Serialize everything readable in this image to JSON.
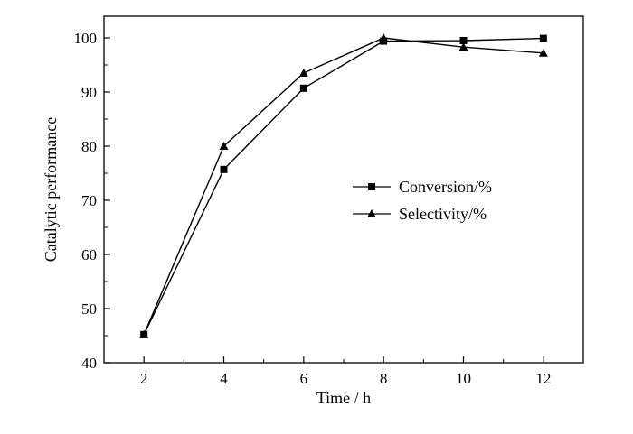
{
  "chart_data": {
    "type": "line",
    "xlabel": "Time / h",
    "ylabel": "Catalytic performance",
    "x": [
      2,
      4,
      6,
      8,
      10,
      12
    ],
    "xticks": [
      "2",
      "4",
      "6",
      "8",
      "10",
      "12"
    ],
    "yticks": [
      "40",
      "50",
      "60",
      "70",
      "80",
      "90",
      "100"
    ],
    "xlim": [
      1,
      13
    ],
    "ylim": [
      40,
      104
    ],
    "grid": false,
    "legend_position": "center-right",
    "series": [
      {
        "name": "Conversion/%",
        "marker": "square",
        "values": [
          45.2,
          75.7,
          90.7,
          99.4,
          99.5,
          99.9
        ],
        "color": "#000000"
      },
      {
        "name": "Selectivity/%",
        "marker": "triangle",
        "values": [
          45.2,
          80.0,
          93.5,
          100.0,
          98.3,
          97.2
        ],
        "color": "#000000"
      }
    ]
  }
}
